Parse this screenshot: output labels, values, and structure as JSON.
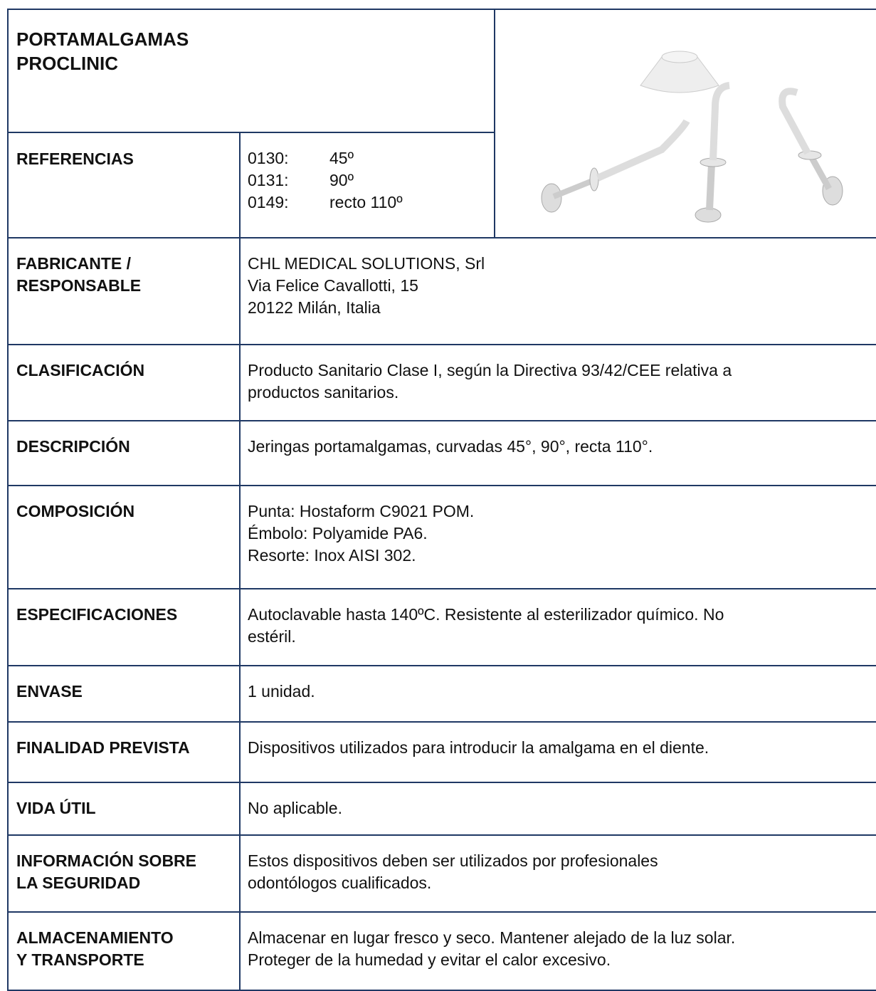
{
  "header": {
    "title": [
      "PORTAMALGAMAS",
      "PROCLINIC"
    ]
  },
  "references": {
    "label": [
      "REFERENCIAS"
    ],
    "rows": [
      [
        "0130:",
        "45º"
      ],
      [
        "0131:",
        "90º"
      ],
      [
        "0149:",
        "recto 110º"
      ]
    ]
  },
  "table": {
    "rows": [
      {
        "label": [
          "FABRICANTE /",
          "RESPONSABLE"
        ],
        "value": [
          "CHL MEDICAL SOLUTIONS, Srl",
          "Via Felice Cavallotti, 15",
          "20122 Milán, Italia"
        ]
      },
      {
        "label": [
          "CLASIFICACIÓN"
        ],
        "value": [
          "Producto Sanitario Clase I, según la Directiva 93/42/CEE relativa a",
          "productos sanitarios."
        ]
      },
      {
        "label": [
          "DESCRIPCIÓN"
        ],
        "value": [
          "Jeringas portamalgamas, curvadas 45°, 90°, recta 110°."
        ]
      },
      {
        "label": [
          "COMPOSICIÓN"
        ],
        "value": [
          "Punta: Hostaform C9021 POM.",
          "Émbolo: Polyamide PA6.",
          "Resorte: Inox AISI 302."
        ]
      },
      {
        "label": [
          "ESPECIFICACIONES"
        ],
        "value": [
          "Autoclavable hasta 140ºC. Resistente al esterilizador químico. No",
          "estéril."
        ]
      },
      {
        "label": [
          "ENVASE"
        ],
        "value": [
          "1 unidad."
        ]
      },
      {
        "label": [
          "FINALIDAD PREVISTA"
        ],
        "value": [
          "Dispositivos utilizados para introducir la amalgama en el diente."
        ]
      },
      {
        "label": [
          "VIDA ÚTIL"
        ],
        "value": [
          "No aplicable."
        ]
      },
      {
        "label": [
          "INFORMACIÓN SOBRE",
          "LA SEGURIDAD"
        ],
        "value": [
          "Estos dispositivos deben ser utilizados por profesionales",
          "odontólogos cualificados."
        ]
      },
      {
        "label": [
          "ALMACENAMIENTO",
          "Y TRANSPORTE"
        ],
        "value": [
          "Almacenar en lugar fresco y seco. Mantener alejado de la luz solar.",
          "Proteger de la humedad y evitar el calor excesivo."
        ]
      }
    ]
  }
}
